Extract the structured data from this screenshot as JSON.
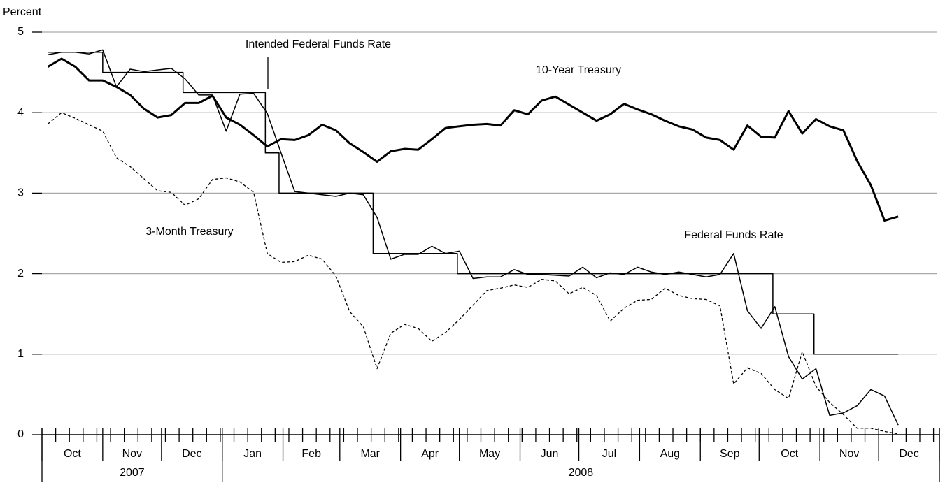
{
  "chart_data": {
    "type": "line",
    "y_label": "Percent",
    "ylim": [
      0,
      5
    ],
    "yticks": [
      0,
      1,
      2,
      3,
      4,
      5
    ],
    "grid": true,
    "xlim": [
      0,
      458
    ],
    "xticks": [
      7,
      14,
      21,
      28,
      35,
      42,
      49,
      56,
      63,
      70,
      77,
      84,
      91,
      98,
      105,
      112,
      119,
      126,
      133,
      140,
      147,
      154,
      161,
      168,
      175,
      182,
      189,
      196,
      203,
      210,
      217,
      224,
      231,
      238,
      245,
      252,
      259,
      266,
      273,
      280,
      287,
      294,
      301,
      308,
      315,
      322,
      329,
      336,
      343,
      350,
      357,
      364,
      371,
      378,
      385,
      392,
      399,
      406,
      413,
      420,
      427,
      434,
      441,
      448,
      455
    ],
    "month_ticks": [
      0,
      31,
      61,
      92,
      123,
      152,
      183,
      213,
      244,
      274,
      305,
      336,
      366,
      397,
      427,
      458
    ],
    "month_labels": [
      "Oct",
      "Nov",
      "Dec",
      "Jan",
      "Feb",
      "Mar",
      "Apr",
      "May",
      "Jun",
      "Jul",
      "Aug",
      "Sep",
      "Oct",
      "Nov",
      "Dec"
    ],
    "year_ticks": [
      0,
      92,
      458
    ],
    "year_labels": [
      "2007",
      "2008"
    ],
    "x": [
      3,
      10,
      17,
      24,
      31,
      38,
      45,
      52,
      59,
      66,
      73,
      80,
      87,
      94,
      101,
      108,
      115,
      122,
      129,
      136,
      143,
      150,
      157,
      164,
      171,
      178,
      185,
      192,
      199,
      206,
      213,
      220,
      227,
      234,
      241,
      248,
      255,
      262,
      269,
      276,
      283,
      290,
      297,
      304,
      311,
      318,
      325,
      332,
      339,
      346,
      353,
      360,
      367,
      374,
      381,
      388,
      395,
      402,
      409,
      416,
      423,
      430,
      437
    ],
    "series": [
      {
        "name": "10-Year Treasury",
        "color": "#000000",
        "width": 3,
        "dashed": false,
        "values": [
          4.57,
          4.67,
          4.57,
          4.4,
          4.4,
          4.32,
          4.22,
          4.05,
          3.94,
          3.97,
          4.12,
          4.12,
          4.21,
          3.94,
          3.85,
          3.72,
          3.58,
          3.67,
          3.66,
          3.72,
          3.85,
          3.78,
          3.62,
          3.51,
          3.39,
          3.52,
          3.55,
          3.54,
          3.67,
          3.81,
          3.83,
          3.85,
          3.86,
          3.84,
          4.03,
          3.98,
          4.15,
          4.2,
          4.1,
          4.0,
          3.9,
          3.98,
          4.11,
          4.04,
          3.98,
          3.9,
          3.83,
          3.79,
          3.69,
          3.66,
          3.54,
          3.84,
          3.7,
          3.69,
          4.02,
          3.74,
          3.92,
          3.83,
          3.78,
          3.4,
          3.1,
          2.66,
          2.71
        ]
      },
      {
        "name": "Federal Funds Rate",
        "color": "#000000",
        "width": 1.5,
        "dashed": false,
        "values": [
          4.72,
          4.75,
          4.75,
          4.73,
          4.78,
          4.32,
          4.54,
          4.51,
          4.53,
          4.55,
          4.42,
          4.22,
          4.22,
          3.77,
          4.23,
          4.24,
          3.99,
          3.5,
          3.02,
          3.0,
          2.98,
          2.96,
          3.0,
          2.98,
          2.7,
          2.18,
          2.24,
          2.24,
          2.34,
          2.25,
          2.28,
          1.94,
          1.96,
          1.96,
          2.05,
          1.99,
          1.99,
          1.98,
          1.97,
          2.08,
          1.95,
          2.01,
          1.99,
          2.08,
          2.02,
          1.99,
          2.02,
          1.99,
          1.96,
          1.99,
          2.25,
          1.54,
          1.32,
          1.59,
          0.97,
          0.69,
          0.82,
          0.24,
          0.27,
          0.36,
          0.56,
          0.48,
          0.12
        ]
      },
      {
        "name": "3-Month Treasury",
        "color": "#000000",
        "width": 1.3,
        "dashed": true,
        "values": [
          3.86,
          4.0,
          3.93,
          3.85,
          3.77,
          3.44,
          3.33,
          3.18,
          3.03,
          3.01,
          2.85,
          2.93,
          3.17,
          3.19,
          3.14,
          3.01,
          2.25,
          2.14,
          2.15,
          2.23,
          2.18,
          1.97,
          1.53,
          1.34,
          0.82,
          1.26,
          1.37,
          1.32,
          1.16,
          1.27,
          1.43,
          1.61,
          1.79,
          1.82,
          1.86,
          1.83,
          1.93,
          1.91,
          1.75,
          1.83,
          1.73,
          1.41,
          1.57,
          1.67,
          1.68,
          1.82,
          1.73,
          1.69,
          1.68,
          1.6,
          0.63,
          0.83,
          0.76,
          0.56,
          0.45,
          1.03,
          0.6,
          0.4,
          0.25,
          0.08,
          0.08,
          0.04,
          0.01
        ]
      },
      {
        "name": "Intended Federal Funds Rate",
        "color": "#000000",
        "width": 1.5,
        "dashed": false,
        "step": true,
        "x": [
          3,
          31,
          72,
          114,
          121,
          169,
          212,
          373,
          394,
          437
        ],
        "values": [
          4.75,
          4.5,
          4.25,
          3.5,
          3.0,
          2.25,
          2.0,
          1.5,
          1.0,
          1.0
        ]
      }
    ]
  }
}
